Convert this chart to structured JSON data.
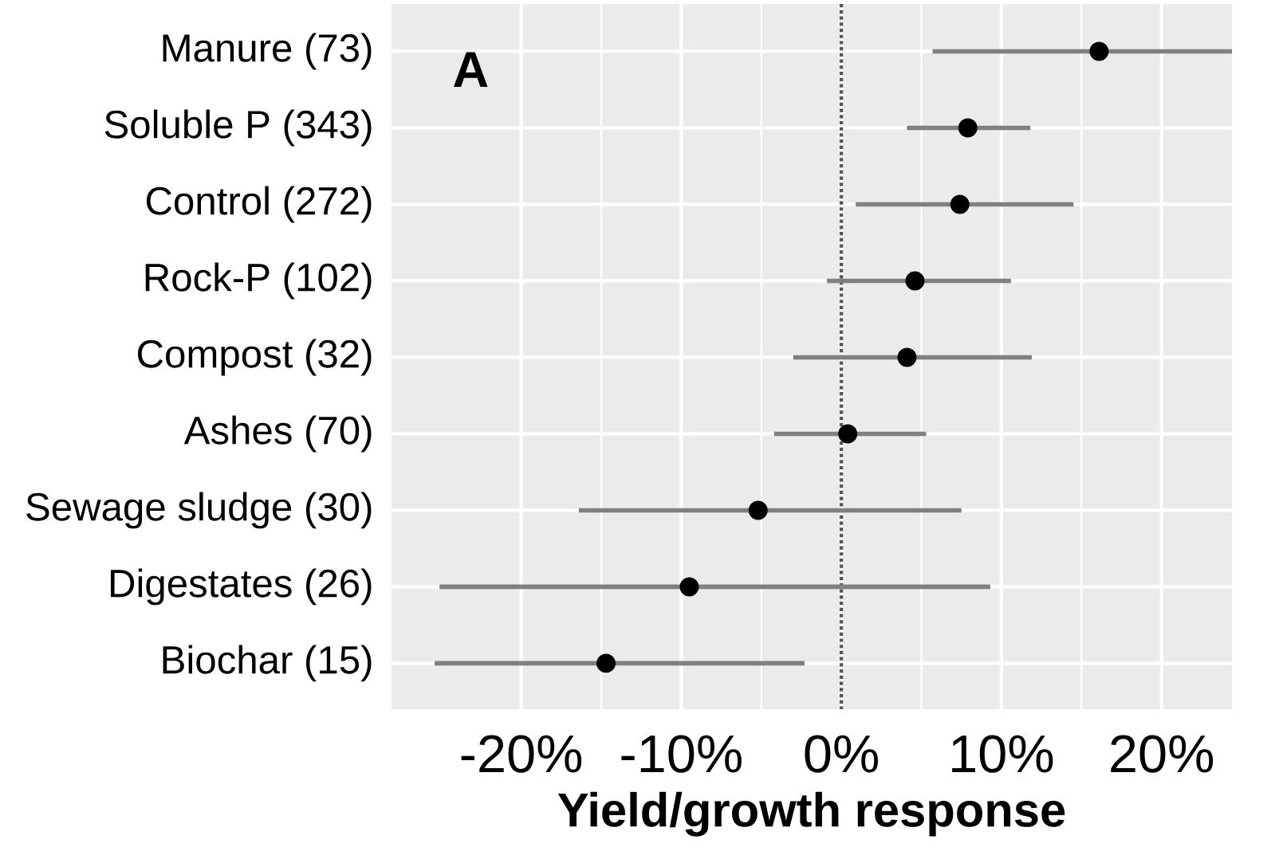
{
  "chart_data": {
    "type": "scatter",
    "orientation": "horizontal",
    "xlabel": "Yield/growth response",
    "categories": [
      "Manure (73)",
      "Soluble P (343)",
      "Control (272)",
      "Rock-P (102)",
      "Compost (32)",
      "Ashes (70)",
      "Sewage sludge (30)",
      "Digestates (26)",
      "Biochar (15)"
    ],
    "values": [
      16.1,
      7.9,
      7.4,
      4.6,
      4.1,
      0.4,
      -5.2,
      -9.5,
      -14.7
    ],
    "errors": [
      [
        5.7,
        24.4
      ],
      [
        4.1,
        11.8
      ],
      [
        0.9,
        14.5
      ],
      [
        -0.9,
        10.6
      ],
      [
        -3.0,
        11.9
      ],
      [
        -4.2,
        5.3
      ],
      [
        -16.4,
        7.5
      ],
      [
        -25.1,
        9.3
      ],
      [
        -25.4,
        -2.3
      ]
    ],
    "color": "#000000",
    "xlim": [
      -28.1,
      24.4
    ],
    "xticks": [
      {
        "value": -20,
        "label": "-20%"
      },
      {
        "value": -10,
        "label": "-10%"
      },
      {
        "value": 0,
        "label": "0%"
      },
      {
        "value": 10,
        "label": "10%"
      },
      {
        "value": 20,
        "label": "20%"
      }
    ],
    "grid": true,
    "ref_lines": [
      {
        "axis": "x",
        "value": 0,
        "line_style": "dotted",
        "color": "#555555"
      }
    ],
    "annotations": [
      "A"
    ]
  }
}
